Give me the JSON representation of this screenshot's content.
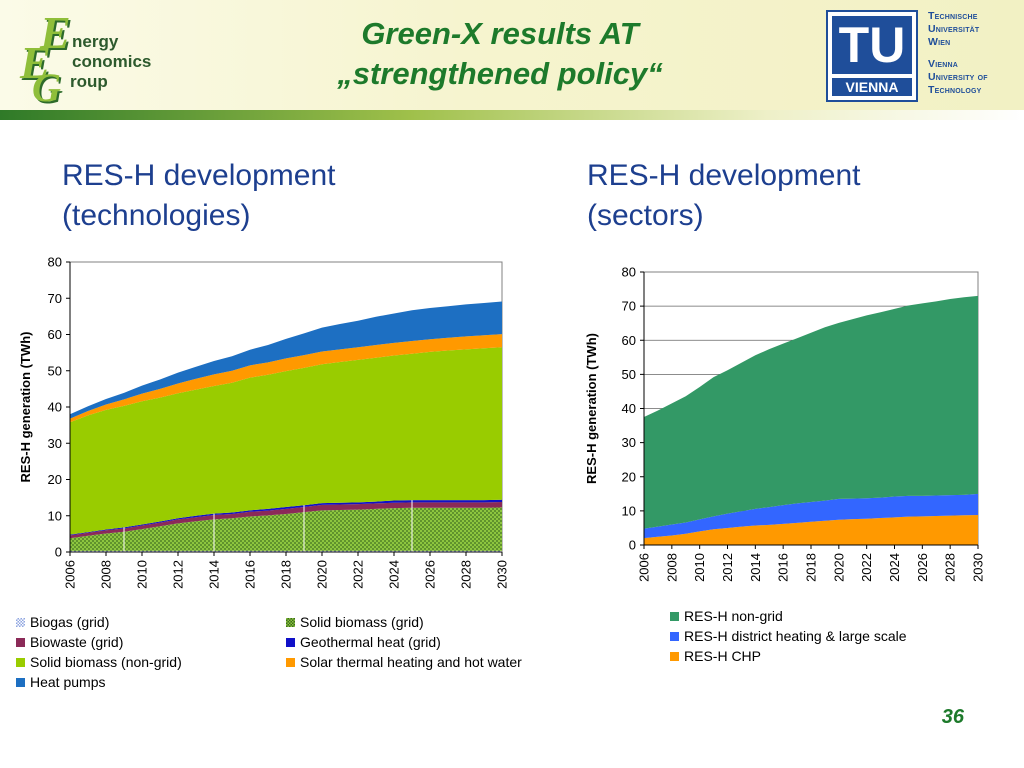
{
  "header": {
    "title_line1": "Green-X results AT",
    "title_line2": "„strengthened policy“",
    "eeg_logo": {
      "letters": [
        "E",
        "E",
        "G"
      ],
      "words": [
        "nergy",
        "conomics",
        "roup"
      ]
    },
    "tu_logo": {
      "mark": "TU",
      "city": "VIENNA"
    },
    "tu_name": [
      "Technische",
      "Universität",
      "Wien",
      "Vienna",
      "University of",
      "Technology"
    ]
  },
  "left": {
    "subtitle_line1": "RES-H development",
    "subtitle_line2": "(technologies)"
  },
  "right": {
    "subtitle_line1": "RES-H development",
    "subtitle_line2": "(sectors)"
  },
  "page_number": "36",
  "chart_data": [
    {
      "type": "area",
      "stacked": true,
      "title": "",
      "xlabel": "",
      "ylabel": "RES-H generation (TWh)",
      "ylim": [
        0,
        80
      ],
      "yticks": [
        0,
        10,
        20,
        30,
        40,
        50,
        60,
        70,
        80
      ],
      "x": [
        2006,
        2007,
        2008,
        2009,
        2010,
        2011,
        2012,
        2013,
        2014,
        2015,
        2016,
        2017,
        2018,
        2019,
        2020,
        2021,
        2022,
        2023,
        2024,
        2025,
        2026,
        2027,
        2028,
        2029,
        2030
      ],
      "xticks": [
        "2006",
        "2008",
        "2010",
        "2012",
        "2014",
        "2016",
        "2018",
        "2020",
        "2022",
        "2024",
        "2026",
        "2028",
        "2030"
      ],
      "grid": false,
      "legend_position": "bottom",
      "series": [
        {
          "name": "Biogas (grid)",
          "color": "#8fa6e0",
          "values": [
            0.3,
            0.3,
            0.3,
            0.3,
            0.3,
            0.3,
            0.3,
            0.3,
            0.3,
            0.3,
            0.3,
            0.3,
            0.3,
            0.3,
            0.3,
            0.3,
            0.3,
            0.3,
            0.3,
            0.3,
            0.3,
            0.3,
            0.3,
            0.3,
            0.3
          ]
        },
        {
          "name": "Solid biomass (grid)",
          "color": "#8dc63f",
          "values": [
            3.5,
            4.2,
            4.8,
            5.3,
            6.0,
            6.8,
            7.6,
            8.2,
            8.7,
            9.0,
            9.5,
            9.8,
            10.2,
            10.7,
            11.2,
            11.3,
            11.4,
            11.6,
            11.8,
            11.9,
            11.9,
            11.9,
            11.9,
            11.9,
            12.0
          ]
        },
        {
          "name": "Biowaste (grid)",
          "color": "#8b2a58",
          "values": [
            0.8,
            0.8,
            0.9,
            0.9,
            1.0,
            1.0,
            1.1,
            1.1,
            1.2,
            1.2,
            1.3,
            1.3,
            1.4,
            1.4,
            1.5,
            1.5,
            1.5,
            1.5,
            1.5,
            1.5,
            1.5,
            1.5,
            1.5,
            1.5,
            1.5
          ]
        },
        {
          "name": "Geothermal heat (grid)",
          "color": "#1010c8",
          "values": [
            0.2,
            0.2,
            0.2,
            0.3,
            0.3,
            0.3,
            0.3,
            0.4,
            0.4,
            0.4,
            0.4,
            0.5,
            0.5,
            0.5,
            0.5,
            0.5,
            0.5,
            0.5,
            0.6,
            0.6,
            0.6,
            0.6,
            0.6,
            0.6,
            0.6
          ]
        },
        {
          "name": "Solid biomass (non-grid)",
          "color": "#99cc00",
          "values": [
            31.0,
            32.2,
            33.0,
            33.5,
            34.0,
            34.2,
            34.5,
            34.8,
            35.2,
            35.8,
            36.6,
            37.0,
            37.5,
            37.9,
            38.3,
            38.8,
            39.3,
            39.7,
            40.0,
            40.4,
            40.9,
            41.3,
            41.6,
            41.9,
            42.1
          ]
        },
        {
          "name": "Solar thermal heating and hot water",
          "color": "#ff9900",
          "values": [
            1.0,
            1.2,
            1.5,
            1.8,
            2.1,
            2.4,
            2.7,
            3.0,
            3.2,
            3.3,
            3.4,
            3.4,
            3.5,
            3.5,
            3.5,
            3.5,
            3.5,
            3.5,
            3.5,
            3.5,
            3.5,
            3.5,
            3.6,
            3.6,
            3.6
          ]
        },
        {
          "name": "Heat pumps",
          "color": "#1d6fc2",
          "values": [
            1.2,
            1.3,
            1.5,
            1.8,
            2.2,
            2.6,
            3.0,
            3.3,
            3.7,
            4.0,
            4.3,
            4.8,
            5.4,
            6.0,
            6.6,
            7.0,
            7.3,
            7.8,
            8.1,
            8.5,
            8.6,
            8.7,
            8.8,
            8.9,
            9.0
          ]
        }
      ]
    },
    {
      "type": "area",
      "stacked": true,
      "title": "",
      "xlabel": "",
      "ylabel": "RES-H generation (TWh)",
      "ylim": [
        0,
        80
      ],
      "yticks": [
        0,
        10,
        20,
        30,
        40,
        50,
        60,
        70,
        80
      ],
      "x": [
        2006,
        2007,
        2008,
        2009,
        2010,
        2011,
        2012,
        2013,
        2014,
        2015,
        2016,
        2017,
        2018,
        2019,
        2020,
        2021,
        2022,
        2023,
        2024,
        2025,
        2026,
        2027,
        2028,
        2029,
        2030
      ],
      "xticks": [
        "2006",
        "2008",
        "2010",
        "2012",
        "2014",
        "2016",
        "2018",
        "2020",
        "2022",
        "2024",
        "2026",
        "2028",
        "2030"
      ],
      "grid": true,
      "legend_position": "bottom",
      "series": [
        {
          "name": "RES-H CHP",
          "color": "#ff9900",
          "values": [
            2.0,
            2.4,
            2.8,
            3.3,
            4.0,
            4.6,
            5.0,
            5.4,
            5.7,
            5.9,
            6.2,
            6.5,
            6.8,
            7.1,
            7.4,
            7.6,
            7.7,
            7.9,
            8.1,
            8.3,
            8.4,
            8.5,
            8.6,
            8.7,
            8.8
          ]
        },
        {
          "name": "RES-H district heating & large scale",
          "color": "#3366ff",
          "values": [
            2.8,
            3.0,
            3.2,
            3.3,
            3.5,
            3.8,
            4.2,
            4.5,
            4.9,
            5.2,
            5.5,
            5.7,
            5.8,
            5.9,
            6.1,
            6.0,
            6.0,
            6.0,
            6.1,
            6.1,
            6.0,
            6.0,
            6.0,
            6.0,
            6.2
          ]
        },
        {
          "name": "RES-H non-grid",
          "color": "#339966",
          "values": [
            32.7,
            34.0,
            35.5,
            37.0,
            38.8,
            40.8,
            42.0,
            43.5,
            45.0,
            46.3,
            47.3,
            48.4,
            49.6,
            50.8,
            51.6,
            52.6,
            53.6,
            54.3,
            55.0,
            55.8,
            56.4,
            56.9,
            57.5,
            57.9,
            58.0
          ]
        }
      ]
    }
  ]
}
